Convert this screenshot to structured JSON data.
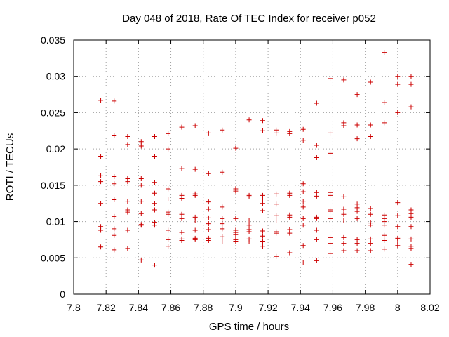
{
  "chart_data": {
    "type": "scatter",
    "title": "Day 048 of 2018, Rate Of TEC Index for receiver p052",
    "xlabel": "GPS time / hours",
    "ylabel": "ROTI / TECUs",
    "xlim": [
      7.8,
      8.02
    ],
    "ylim": [
      0,
      0.035
    ],
    "x_ticks": [
      7.8,
      7.82,
      7.84,
      7.86,
      7.88,
      7.9,
      7.92,
      7.94,
      7.96,
      7.98,
      8.0,
      8.02
    ],
    "x_tick_labels": [
      "7.8",
      "7.82",
      "7.84",
      "7.86",
      "7.88",
      "7.9",
      "7.92",
      "7.94",
      "7.96",
      "7.98",
      "8",
      "8.02"
    ],
    "y_ticks": [
      0,
      0.005,
      0.01,
      0.015,
      0.02,
      0.025,
      0.03,
      0.035
    ],
    "y_tick_labels": [
      "0",
      "0.005",
      "0.01",
      "0.015",
      "0.02",
      "0.025",
      "0.03",
      "0.035"
    ],
    "grid": true,
    "marker": "+",
    "marker_color": "#cc0000",
    "series": [
      {
        "name": "ROTI",
        "points": [
          [
            7.8167,
            0.0267
          ],
          [
            7.8167,
            0.019
          ],
          [
            7.8167,
            0.0163
          ],
          [
            7.8167,
            0.0155
          ],
          [
            7.8167,
            0.0125
          ],
          [
            7.8167,
            0.0093
          ],
          [
            7.8167,
            0.0088
          ],
          [
            7.8167,
            0.0065
          ],
          [
            7.825,
            0.0266
          ],
          [
            7.825,
            0.0219
          ],
          [
            7.825,
            0.0162
          ],
          [
            7.825,
            0.0152
          ],
          [
            7.825,
            0.013
          ],
          [
            7.825,
            0.0107
          ],
          [
            7.825,
            0.009
          ],
          [
            7.825,
            0.0081
          ],
          [
            7.825,
            0.0061
          ],
          [
            7.8333,
            0.0217
          ],
          [
            7.8333,
            0.0206
          ],
          [
            7.8333,
            0.0159
          ],
          [
            7.8333,
            0.0155
          ],
          [
            7.8333,
            0.0128
          ],
          [
            7.8333,
            0.0116
          ],
          [
            7.8333,
            0.0113
          ],
          [
            7.8333,
            0.0088
          ],
          [
            7.8333,
            0.0063
          ],
          [
            7.8417,
            0.021
          ],
          [
            7.8417,
            0.0204
          ],
          [
            7.8417,
            0.0159
          ],
          [
            7.8417,
            0.015
          ],
          [
            7.8417,
            0.0128
          ],
          [
            7.8417,
            0.0111
          ],
          [
            7.8417,
            0.0096
          ],
          [
            7.8417,
            0.0095
          ],
          [
            7.8417,
            0.0047
          ],
          [
            7.85,
            0.0217
          ],
          [
            7.85,
            0.019
          ],
          [
            7.85,
            0.0154
          ],
          [
            7.85,
            0.0139
          ],
          [
            7.85,
            0.0125
          ],
          [
            7.85,
            0.0116
          ],
          [
            7.85,
            0.0099
          ],
          [
            7.85,
            0.0095
          ],
          [
            7.85,
            0.004
          ],
          [
            7.8583,
            0.0221
          ],
          [
            7.8583,
            0.02
          ],
          [
            7.8583,
            0.0145
          ],
          [
            7.8583,
            0.0131
          ],
          [
            7.8583,
            0.0113
          ],
          [
            7.8583,
            0.011
          ],
          [
            7.8583,
            0.0088
          ],
          [
            7.8583,
            0.0075
          ],
          [
            7.8583,
            0.0066
          ],
          [
            7.8667,
            0.023
          ],
          [
            7.8667,
            0.0173
          ],
          [
            7.8667,
            0.0136
          ],
          [
            7.8667,
            0.0132
          ],
          [
            7.8667,
            0.011
          ],
          [
            7.8667,
            0.0104
          ],
          [
            7.8667,
            0.0085
          ],
          [
            7.8667,
            0.0076
          ],
          [
            7.8667,
            0.0074
          ],
          [
            7.875,
            0.0232
          ],
          [
            7.875,
            0.0172
          ],
          [
            7.875,
            0.0138
          ],
          [
            7.875,
            0.0136
          ],
          [
            7.875,
            0.0106
          ],
          [
            7.875,
            0.0102
          ],
          [
            7.875,
            0.0088
          ],
          [
            7.875,
            0.0077
          ],
          [
            7.875,
            0.0075
          ],
          [
            7.8833,
            0.0222
          ],
          [
            7.8833,
            0.0166
          ],
          [
            7.8833,
            0.0127
          ],
          [
            7.8833,
            0.0117
          ],
          [
            7.8833,
            0.0105
          ],
          [
            7.8833,
            0.0097
          ],
          [
            7.8833,
            0.0089
          ],
          [
            7.8833,
            0.0077
          ],
          [
            7.8833,
            0.0074
          ],
          [
            7.8917,
            0.0226
          ],
          [
            7.8917,
            0.0168
          ],
          [
            7.8917,
            0.012
          ],
          [
            7.8917,
            0.0104
          ],
          [
            7.8917,
            0.0097
          ],
          [
            7.8917,
            0.009
          ],
          [
            7.8917,
            0.0079
          ],
          [
            7.8917,
            0.0072
          ],
          [
            7.9,
            0.0201
          ],
          [
            7.9,
            0.0145
          ],
          [
            7.9,
            0.0142
          ],
          [
            7.9,
            0.0104
          ],
          [
            7.9,
            0.0088
          ],
          [
            7.9,
            0.0085
          ],
          [
            7.9,
            0.0082
          ],
          [
            7.9,
            0.0075
          ],
          [
            7.9,
            0.0073
          ],
          [
            7.9083,
            0.024
          ],
          [
            7.9083,
            0.0136
          ],
          [
            7.9083,
            0.0134
          ],
          [
            7.9083,
            0.0102
          ],
          [
            7.9083,
            0.0095
          ],
          [
            7.9083,
            0.0089
          ],
          [
            7.9083,
            0.0086
          ],
          [
            7.9083,
            0.0076
          ],
          [
            7.9083,
            0.0072
          ],
          [
            7.9167,
            0.0239
          ],
          [
            7.9167,
            0.0225
          ],
          [
            7.9167,
            0.0136
          ],
          [
            7.9167,
            0.0131
          ],
          [
            7.9167,
            0.0125
          ],
          [
            7.9167,
            0.0115
          ],
          [
            7.9167,
            0.0087
          ],
          [
            7.9167,
            0.008
          ],
          [
            7.9167,
            0.0073
          ],
          [
            7.9167,
            0.0066
          ],
          [
            7.925,
            0.0226
          ],
          [
            7.925,
            0.0222
          ],
          [
            7.925,
            0.0138
          ],
          [
            7.925,
            0.0124
          ],
          [
            7.925,
            0.0108
          ],
          [
            7.925,
            0.0102
          ],
          [
            7.925,
            0.0086
          ],
          [
            7.925,
            0.0084
          ],
          [
            7.925,
            0.0052
          ],
          [
            7.9333,
            0.0224
          ],
          [
            7.9333,
            0.0221
          ],
          [
            7.9333,
            0.0139
          ],
          [
            7.9333,
            0.0136
          ],
          [
            7.9333,
            0.0109
          ],
          [
            7.9333,
            0.0106
          ],
          [
            7.9333,
            0.0089
          ],
          [
            7.9333,
            0.0084
          ],
          [
            7.9333,
            0.0057
          ],
          [
            7.9417,
            0.0227
          ],
          [
            7.9417,
            0.0212
          ],
          [
            7.9417,
            0.0152
          ],
          [
            7.9417,
            0.0141
          ],
          [
            7.9417,
            0.0128
          ],
          [
            7.9417,
            0.012
          ],
          [
            7.9417,
            0.0104
          ],
          [
            7.9417,
            0.0095
          ],
          [
            7.9417,
            0.0067
          ],
          [
            7.9417,
            0.0043
          ],
          [
            7.95,
            0.0263
          ],
          [
            7.95,
            0.0205
          ],
          [
            7.95,
            0.0188
          ],
          [
            7.95,
            0.014
          ],
          [
            7.95,
            0.0135
          ],
          [
            7.95,
            0.0106
          ],
          [
            7.95,
            0.0104
          ],
          [
            7.95,
            0.0088
          ],
          [
            7.95,
            0.0075
          ],
          [
            7.95,
            0.0046
          ],
          [
            7.9583,
            0.0297
          ],
          [
            7.9583,
            0.0222
          ],
          [
            7.9583,
            0.0194
          ],
          [
            7.9583,
            0.014
          ],
          [
            7.9583,
            0.0136
          ],
          [
            7.9583,
            0.0116
          ],
          [
            7.9583,
            0.0114
          ],
          [
            7.9583,
            0.0104
          ],
          [
            7.9583,
            0.0078
          ],
          [
            7.9583,
            0.007
          ],
          [
            7.9583,
            0.0056
          ],
          [
            7.9667,
            0.0295
          ],
          [
            7.9667,
            0.0236
          ],
          [
            7.9667,
            0.0232
          ],
          [
            7.9667,
            0.0134
          ],
          [
            7.9667,
            0.0117
          ],
          [
            7.9667,
            0.011
          ],
          [
            7.9667,
            0.0102
          ],
          [
            7.9667,
            0.0078
          ],
          [
            7.9667,
            0.007
          ],
          [
            7.9667,
            0.006
          ],
          [
            7.975,
            0.0275
          ],
          [
            7.975,
            0.0233
          ],
          [
            7.975,
            0.0214
          ],
          [
            7.975,
            0.0124
          ],
          [
            7.975,
            0.0119
          ],
          [
            7.975,
            0.0114
          ],
          [
            7.975,
            0.0104
          ],
          [
            7.975,
            0.0075
          ],
          [
            7.975,
            0.007
          ],
          [
            7.975,
            0.006
          ],
          [
            7.9833,
            0.0292
          ],
          [
            7.9833,
            0.0233
          ],
          [
            7.9833,
            0.0217
          ],
          [
            7.9833,
            0.0118
          ],
          [
            7.9833,
            0.011
          ],
          [
            7.9833,
            0.0098
          ],
          [
            7.9833,
            0.0095
          ],
          [
            7.9833,
            0.0076
          ],
          [
            7.9833,
            0.007
          ],
          [
            7.9833,
            0.006
          ],
          [
            7.9917,
            0.0333
          ],
          [
            7.9917,
            0.0264
          ],
          [
            7.9917,
            0.0236
          ],
          [
            7.9917,
            0.0109
          ],
          [
            7.9917,
            0.0104
          ],
          [
            7.9917,
            0.01
          ],
          [
            7.9917,
            0.0095
          ],
          [
            7.9917,
            0.0081
          ],
          [
            7.9917,
            0.0074
          ],
          [
            7.9917,
            0.0062
          ],
          [
            8.0,
            0.03
          ],
          [
            8.0,
            0.0289
          ],
          [
            8.0,
            0.025
          ],
          [
            8.0,
            0.0126
          ],
          [
            8.0,
            0.0108
          ],
          [
            8.0,
            0.0093
          ],
          [
            8.0,
            0.0077
          ],
          [
            8.0,
            0.0072
          ],
          [
            8.0,
            0.0067
          ],
          [
            8.0083,
            0.03
          ],
          [
            8.0083,
            0.0289
          ],
          [
            8.0083,
            0.0258
          ],
          [
            8.0083,
            0.0116
          ],
          [
            8.0083,
            0.0111
          ],
          [
            8.0083,
            0.0106
          ],
          [
            8.0083,
            0.0093
          ],
          [
            8.0083,
            0.0076
          ],
          [
            8.0083,
            0.0066
          ],
          [
            8.0083,
            0.0063
          ],
          [
            8.0083,
            0.0041
          ]
        ]
      }
    ]
  }
}
